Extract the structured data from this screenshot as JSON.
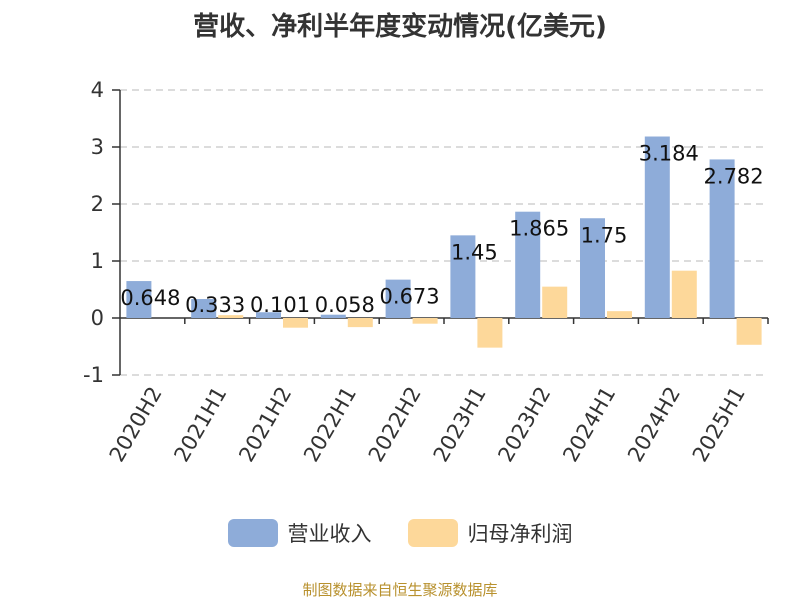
{
  "chart_data": {
    "type": "bar",
    "title": "营收、净利半年度变动情况(亿美元)",
    "categories": [
      "2020H2",
      "2021H1",
      "2021H2",
      "2022H1",
      "2022H2",
      "2023H1",
      "2023H2",
      "2024H1",
      "2024H2",
      "2025H1"
    ],
    "series": [
      {
        "name": "营业收入",
        "color": "#8eacd9",
        "values": [
          0.648,
          0.333,
          0.101,
          0.058,
          0.673,
          1.45,
          1.865,
          1.75,
          3.184,
          2.782
        ],
        "labels": [
          "0.648",
          "0.333",
          "0.101",
          "0.058",
          "0.673",
          "1.45",
          "1.865",
          "1.75",
          "3.184",
          "2.782"
        ]
      },
      {
        "name": "归母净利润",
        "color": "#fdd89a",
        "values": [
          0.0,
          0.05,
          -0.17,
          -0.16,
          -0.1,
          -0.52,
          0.55,
          0.12,
          0.83,
          -0.47
        ]
      }
    ],
    "ylim": [
      -1,
      4
    ],
    "yticks": [
      "-1",
      "0",
      "1",
      "2",
      "3",
      "4"
    ],
    "grid": true,
    "legend_position": "bottom"
  },
  "source": "制图数据来自恒生聚源数据库"
}
